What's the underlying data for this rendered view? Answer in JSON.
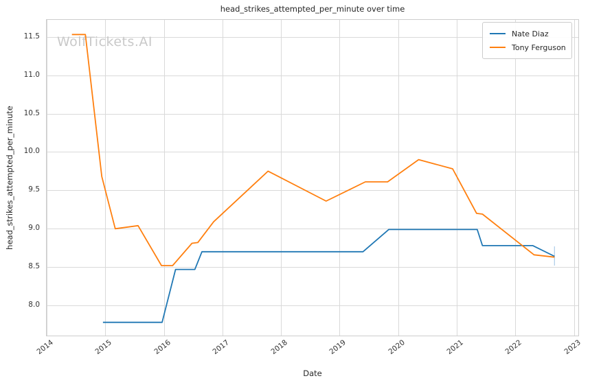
{
  "title": "head_strikes_attempted_per_minute over time",
  "watermark": "WolfTickets.AI",
  "chart_data": {
    "type": "line",
    "title": "head_strikes_attempted_per_minute over time",
    "xlabel": "Date",
    "ylabel": "head_strikes_attempted_per_minute",
    "xlim": [
      2014.0,
      2023.1
    ],
    "ylim": [
      7.59,
      11.72
    ],
    "x_ticks": [
      2014,
      2015,
      2016,
      2017,
      2018,
      2019,
      2020,
      2021,
      2022,
      2023
    ],
    "y_ticks": [
      8.0,
      8.5,
      9.0,
      9.5,
      10.0,
      10.5,
      11.0,
      11.5
    ],
    "grid": true,
    "legend_position": "upper right",
    "series": [
      {
        "name": "Nate Diaz",
        "color": "#1f77b4",
        "points": [
          [
            2014.96,
            7.78
          ],
          [
            2015.97,
            7.78
          ],
          [
            2016.2,
            8.47
          ],
          [
            2016.53,
            8.47
          ],
          [
            2016.65,
            8.7
          ],
          [
            2019.4,
            8.7
          ],
          [
            2019.84,
            8.99
          ],
          [
            2021.35,
            8.99
          ],
          [
            2021.44,
            8.78
          ],
          [
            2022.3,
            8.78
          ],
          [
            2022.67,
            8.64
          ]
        ]
      },
      {
        "name": "Tony Ferguson",
        "color": "#ff7f0e",
        "points": [
          [
            2014.43,
            11.53
          ],
          [
            2014.66,
            11.53
          ],
          [
            2014.94,
            9.68
          ],
          [
            2015.17,
            9.0
          ],
          [
            2015.56,
            9.04
          ],
          [
            2015.96,
            8.52
          ],
          [
            2016.15,
            8.52
          ],
          [
            2016.48,
            8.81
          ],
          [
            2016.58,
            8.82
          ],
          [
            2016.85,
            9.09
          ],
          [
            2017.78,
            9.75
          ],
          [
            2018.77,
            9.36
          ],
          [
            2019.44,
            9.61
          ],
          [
            2019.82,
            9.61
          ],
          [
            2020.35,
            9.9
          ],
          [
            2020.93,
            9.78
          ],
          [
            2021.34,
            9.2
          ],
          [
            2021.44,
            9.19
          ],
          [
            2022.32,
            8.66
          ],
          [
            2022.67,
            8.63
          ]
        ]
      }
    ],
    "end_marker": {
      "x": 2022.67,
      "value_top": 8.77,
      "value_bottom": 8.52,
      "color": "#abcbe7"
    }
  },
  "colors": {
    "grid": "#d9d9d9",
    "spine": "#cccccc",
    "watermark": "#c9c9c9",
    "tick_label": "#333333"
  }
}
